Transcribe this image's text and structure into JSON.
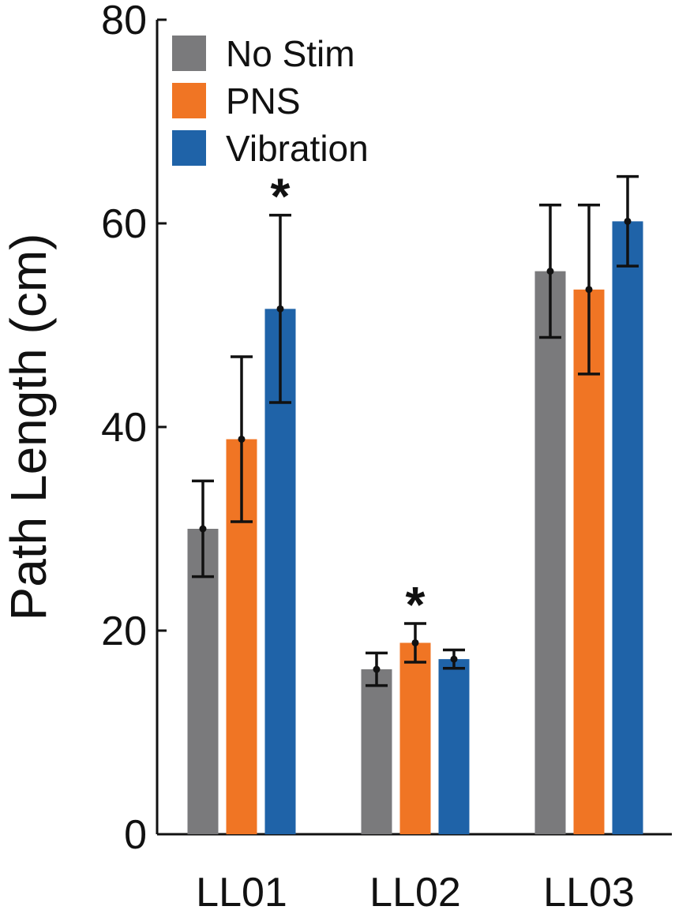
{
  "chart_data": {
    "type": "bar",
    "title": "",
    "xlabel": "",
    "ylabel": "Path Length (cm)",
    "ylim": [
      0,
      80
    ],
    "yticks": [
      0,
      20,
      40,
      60,
      80
    ],
    "categories": [
      "LL01",
      "LL02",
      "LL03"
    ],
    "series": [
      {
        "name": "No Stim",
        "color": "#7a7a7c",
        "values": [
          30.0,
          16.2,
          55.3
        ],
        "errors": [
          4.7,
          1.6,
          6.5
        ]
      },
      {
        "name": "PNS",
        "color": "#f07524",
        "values": [
          38.8,
          18.8,
          53.5
        ],
        "errors": [
          8.1,
          1.9,
          8.3
        ]
      },
      {
        "name": "Vibration",
        "color": "#1f63a8",
        "values": [
          51.6,
          17.2,
          60.2
        ],
        "errors": [
          9.2,
          0.9,
          4.4
        ]
      }
    ],
    "significance": [
      {
        "category": "LL01",
        "series": "Vibration",
        "label": "*"
      },
      {
        "category": "LL02",
        "series": "PNS",
        "label": "*"
      }
    ],
    "legend_position": "top-left",
    "grid": false
  }
}
